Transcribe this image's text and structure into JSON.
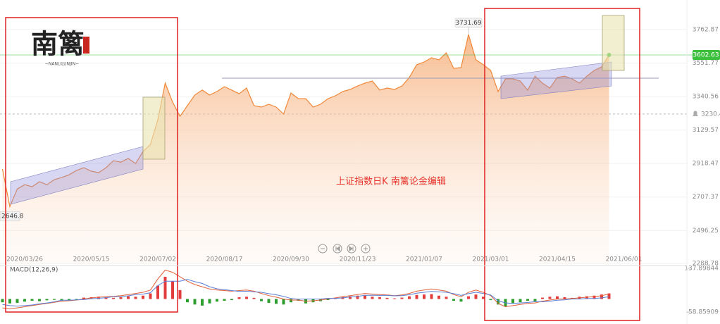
{
  "logo": {
    "name": "南篱",
    "caption": "~NANLILUNJIN~"
  },
  "chart_data": [
    {
      "type": "line",
      "title": "上证指数日K  南篱论金编辑",
      "categories": [
        null,
        null,
        null,
        "2020/03/26",
        null,
        null,
        null,
        null,
        null,
        null,
        null,
        null,
        "2020/05/15",
        null,
        null,
        null,
        null,
        null,
        null,
        null,
        null,
        "2020/07/02",
        null,
        null,
        null,
        null,
        null,
        null,
        null,
        null,
        "2020/08/17",
        null,
        null,
        null,
        null,
        null,
        null,
        null,
        null,
        "2020/09/30",
        null,
        null,
        null,
        null,
        null,
        null,
        null,
        null,
        "2020/11/23",
        null,
        null,
        null,
        null,
        null,
        null,
        null,
        null,
        "2021/01/07",
        null,
        null,
        null,
        null,
        null,
        null,
        null,
        null,
        "2021/03/01",
        null,
        null,
        null,
        null,
        null,
        null,
        null,
        null,
        "2021/04/15",
        null,
        null,
        null,
        null,
        null,
        null,
        null,
        null,
        "2021/06/01"
      ],
      "series": [
        {
          "color": "#f0883a",
          "values": [
            2883,
            2646.8,
            2758,
            2785,
            2772,
            2803,
            2785,
            2816,
            2830,
            2847,
            2874,
            2892,
            2870,
            2861,
            2892,
            2936,
            2927,
            2950,
            2918,
            2994,
            3038,
            3194,
            3425,
            3305,
            3216,
            3283,
            3350,
            3381,
            3350,
            3372,
            3403,
            3381,
            3358,
            3394,
            3283,
            3274,
            3292,
            3274,
            3230,
            3363,
            3327,
            3327,
            3274,
            3292,
            3327,
            3345,
            3372,
            3385,
            3407,
            3425,
            3438,
            3381,
            3394,
            3385,
            3407,
            3461,
            3541,
            3558,
            3585,
            3572,
            3616,
            3518,
            3523,
            3731.69,
            3572,
            3541,
            3505,
            3372,
            3452,
            3452,
            3438,
            3381,
            3469,
            3425,
            3394,
            3461,
            3469,
            3452,
            3425,
            3469,
            3505,
            3527,
            3602.63,
            null,
            null
          ]
        }
      ],
      "ylim": [
        2288.78,
        3860
      ],
      "yticks": [
        3762.87,
        3551.77,
        3340.56,
        3129.57,
        2918.47,
        2707.37,
        2496.25,
        2288.78
      ],
      "reference_line": 3230.43,
      "current_color": "#3cbf3c"
    },
    {
      "type": "macd",
      "title": "MACD(12,26,9)",
      "histogram": {
        "up_color": "#e23c3c",
        "down_color": "#2e9e2e",
        "values": [
          -15,
          -20,
          -18,
          -12,
          -8,
          -10,
          -6,
          -4,
          -8,
          -5,
          -3,
          6,
          8,
          10,
          8,
          5,
          8,
          12,
          10,
          15,
          25,
          60,
          100,
          80,
          40,
          -15,
          -25,
          -30,
          -20,
          -12,
          -8,
          -5,
          8,
          10,
          5,
          -10,
          -18,
          -22,
          -25,
          -15,
          -8,
          -20,
          -15,
          -10,
          -5,
          6,
          10,
          12,
          15,
          18,
          10,
          8,
          5,
          3,
          6,
          12,
          18,
          20,
          22,
          15,
          10,
          -8,
          -12,
          12,
          20,
          10,
          -5,
          -25,
          -35,
          -20,
          -15,
          -8,
          -12,
          6,
          10,
          12,
          8,
          5,
          10,
          12,
          15,
          20,
          25,
          null,
          null
        ]
      },
      "lines": [
        {
          "color": "#e0603a",
          "values": [
            -40,
            -45,
            -40,
            -35,
            -30,
            -25,
            -20,
            -15,
            -10,
            -8,
            -5,
            0,
            5,
            8,
            10,
            12,
            15,
            20,
            25,
            30,
            40,
            90,
            130,
            120,
            100,
            80,
            65,
            55,
            45,
            40,
            38,
            35,
            38,
            40,
            35,
            25,
            15,
            8,
            0,
            -5,
            -5,
            -10,
            -8,
            -5,
            0,
            5,
            10,
            15,
            20,
            25,
            22,
            20,
            18,
            15,
            18,
            25,
            35,
            40,
            45,
            40,
            35,
            20,
            10,
            30,
            40,
            30,
            15,
            -20,
            -35,
            -30,
            -25,
            -20,
            -18,
            -10,
            -5,
            0,
            0,
            2,
            5,
            8,
            10,
            15,
            22,
            null,
            null
          ]
        },
        {
          "color": "#5b7fd6",
          "values": [
            -25,
            -30,
            -32,
            -30,
            -27,
            -22,
            -18,
            -13,
            -6,
            -6,
            -4,
            -3,
            1,
            3,
            6,
            10,
            11,
            14,
            20,
            22,
            28,
            60,
            80,
            80,
            80,
            88,
            78,
            70,
            55,
            46,
            42,
            38,
            34,
            35,
            32,
            30,
            24,
            19,
            12,
            2,
            -1,
            0,
            0,
            0,
            3,
            2,
            5,
            9,
            12,
            16,
            17,
            16,
            16,
            14,
            15,
            19,
            26,
            30,
            34,
            32,
            30,
            24,
            16,
            24,
            30,
            25,
            18,
            -8,
            -18,
            -20,
            -18,
            -16,
            -12,
            -13,
            -10,
            -6,
            -4,
            0,
            0,
            2,
            2,
            5,
            10,
            null,
            null
          ]
        }
      ],
      "ylim": [
        -58.85909,
        137.89844
      ],
      "yticks": [
        137.89844,
        -58.85909
      ]
    }
  ]
}
